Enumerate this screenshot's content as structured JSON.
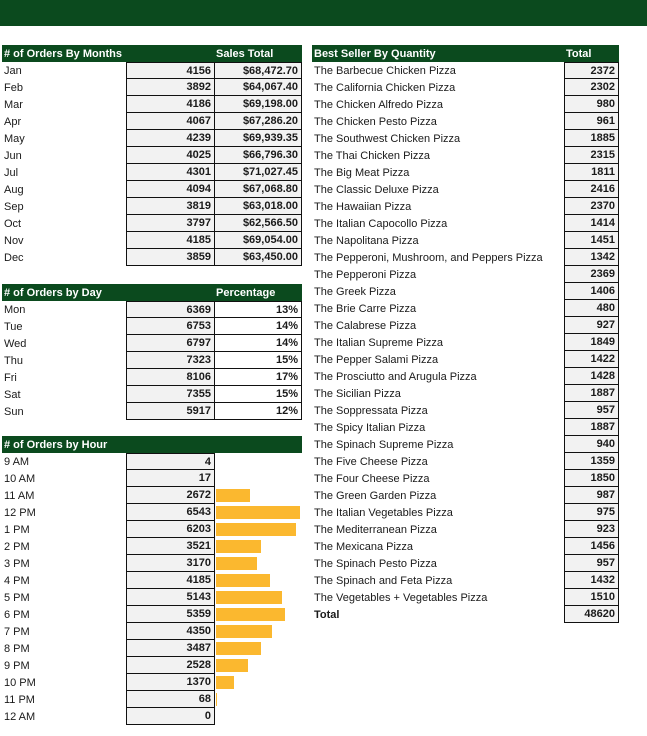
{
  "months": {
    "title": "# of Orders By Months",
    "col2": "Sales Total",
    "rows": [
      {
        "label": "Jan",
        "orders": "4156",
        "sales": "$68,472.70"
      },
      {
        "label": "Feb",
        "orders": "3892",
        "sales": "$64,067.40"
      },
      {
        "label": "Mar",
        "orders": "4186",
        "sales": "$69,198.00"
      },
      {
        "label": "Apr",
        "orders": "4067",
        "sales": "$67,286.20"
      },
      {
        "label": "May",
        "orders": "4239",
        "sales": "$69,939.35"
      },
      {
        "label": "Jun",
        "orders": "4025",
        "sales": "$66,796.30"
      },
      {
        "label": "Jul",
        "orders": "4301",
        "sales": "$71,027.45"
      },
      {
        "label": "Aug",
        "orders": "4094",
        "sales": "$67,068.80"
      },
      {
        "label": "Sep",
        "orders": "3819",
        "sales": "$63,018.00"
      },
      {
        "label": "Oct",
        "orders": "3797",
        "sales": "$62,566.50"
      },
      {
        "label": "Nov",
        "orders": "4185",
        "sales": "$69,054.00"
      },
      {
        "label": "Dec",
        "orders": "3859",
        "sales": "$63,450.00"
      }
    ]
  },
  "days": {
    "title": "# of Orders by Day",
    "col2": "Percentage",
    "rows": [
      {
        "label": "Mon",
        "orders": "6369",
        "pct": "13%"
      },
      {
        "label": "Tue",
        "orders": "6753",
        "pct": "14%"
      },
      {
        "label": "Wed",
        "orders": "6797",
        "pct": "14%"
      },
      {
        "label": "Thu",
        "orders": "7323",
        "pct": "15%"
      },
      {
        "label": "Fri",
        "orders": "8106",
        "pct": "17%"
      },
      {
        "label": "Sat",
        "orders": "7355",
        "pct": "15%"
      },
      {
        "label": "Sun",
        "orders": "5917",
        "pct": "12%"
      }
    ]
  },
  "hours": {
    "title": "# of Orders by Hour",
    "bar_color": "#fbb82f",
    "bar_max": 6543,
    "rows": [
      {
        "label": "9 AM",
        "orders": "4",
        "value": 4
      },
      {
        "label": "10 AM",
        "orders": "17",
        "value": 17
      },
      {
        "label": "11 AM",
        "orders": "2672",
        "value": 2672
      },
      {
        "label": "12 PM",
        "orders": "6543",
        "value": 6543
      },
      {
        "label": "1 PM",
        "orders": "6203",
        "value": 6203
      },
      {
        "label": "2 PM",
        "orders": "3521",
        "value": 3521
      },
      {
        "label": "3 PM",
        "orders": "3170",
        "value": 3170
      },
      {
        "label": "4 PM",
        "orders": "4185",
        "value": 4185
      },
      {
        "label": "5 PM",
        "orders": "5143",
        "value": 5143
      },
      {
        "label": "6 PM",
        "orders": "5359",
        "value": 5359
      },
      {
        "label": "7 PM",
        "orders": "4350",
        "value": 4350
      },
      {
        "label": "8 PM",
        "orders": "3487",
        "value": 3487
      },
      {
        "label": "9 PM",
        "orders": "2528",
        "value": 2528
      },
      {
        "label": "10 PM",
        "orders": "1370",
        "value": 1370
      },
      {
        "label": "11 PM",
        "orders": "68",
        "value": 68
      },
      {
        "label": "12 AM",
        "orders": "0",
        "value": 0
      }
    ]
  },
  "bestsellers": {
    "title": "Best Seller By Quantity",
    "col2": "Total",
    "rows": [
      {
        "name": "The Barbecue Chicken Pizza",
        "total": "2372"
      },
      {
        "name": "The California Chicken Pizza",
        "total": "2302"
      },
      {
        "name": "The Chicken Alfredo Pizza",
        "total": "980"
      },
      {
        "name": "The Chicken Pesto Pizza",
        "total": "961"
      },
      {
        "name": "The Southwest Chicken Pizza",
        "total": "1885"
      },
      {
        "name": "The Thai Chicken Pizza",
        "total": "2315"
      },
      {
        "name": "The Big Meat Pizza",
        "total": "1811"
      },
      {
        "name": "The Classic Deluxe Pizza",
        "total": "2416"
      },
      {
        "name": "The Hawaiian Pizza",
        "total": "2370"
      },
      {
        "name": "The Italian Capocollo Pizza",
        "total": "1414"
      },
      {
        "name": "The Napolitana Pizza",
        "total": "1451"
      },
      {
        "name": "The Pepperoni, Mushroom, and Peppers Pizza",
        "total": "1342"
      },
      {
        "name": "The Pepperoni Pizza",
        "total": "2369"
      },
      {
        "name": "The Greek Pizza",
        "total": "1406"
      },
      {
        "name": "The Brie Carre Pizza",
        "total": "480"
      },
      {
        "name": "The Calabrese Pizza",
        "total": "927"
      },
      {
        "name": "The Italian Supreme Pizza",
        "total": "1849"
      },
      {
        "name": "The Pepper Salami Pizza",
        "total": "1422"
      },
      {
        "name": "The Prosciutto and Arugula Pizza",
        "total": "1428"
      },
      {
        "name": "The Sicilian Pizza",
        "total": "1887"
      },
      {
        "name": "The Soppressata Pizza",
        "total": "957"
      },
      {
        "name": "The Spicy Italian Pizza",
        "total": "1887"
      },
      {
        "name": "The Spinach Supreme Pizza",
        "total": "940"
      },
      {
        "name": "The Five Cheese Pizza",
        "total": "1359"
      },
      {
        "name": "The Four Cheese Pizza",
        "total": "1850"
      },
      {
        "name": "The Green Garden Pizza",
        "total": "987"
      },
      {
        "name": "The Italian Vegetables Pizza",
        "total": "975"
      },
      {
        "name": "The Mediterranean Pizza",
        "total": "923"
      },
      {
        "name": "The Mexicana Pizza",
        "total": "1456"
      },
      {
        "name": "The Spinach Pesto Pizza",
        "total": "957"
      },
      {
        "name": "The Spinach and Feta Pizza",
        "total": "1432"
      },
      {
        "name": "The Vegetables + Vegetables Pizza",
        "total": "1510"
      }
    ],
    "total_label": "Total",
    "total_value": "48620"
  }
}
